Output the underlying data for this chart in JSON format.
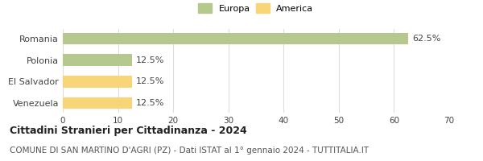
{
  "categories": [
    "Romania",
    "Polonia",
    "El Salvador",
    "Venezuela"
  ],
  "values": [
    62.5,
    12.5,
    12.5,
    12.5
  ],
  "bar_colors": [
    "#b5c98e",
    "#b5c98e",
    "#f9d57a",
    "#f9d57a"
  ],
  "xlim": [
    0,
    70
  ],
  "xticks": [
    0,
    10,
    20,
    30,
    40,
    50,
    60,
    70
  ],
  "legend_items": [
    {
      "label": "Europa",
      "color": "#b5c98e"
    },
    {
      "label": "America",
      "color": "#f9d57a"
    }
  ],
  "title": "Cittadini Stranieri per Cittadinanza - 2024",
  "subtitle": "COMUNE DI SAN MARTINO D'AGRI (PZ) - Dati ISTAT al 1° gennaio 2024 - TUTTITALIA.IT",
  "bar_height": 0.55,
  "background_color": "#ffffff",
  "grid_color": "#dddddd",
  "label_fontsize": 8.0,
  "tick_fontsize": 7.5,
  "title_fontsize": 9.0,
  "subtitle_fontsize": 7.5,
  "value_label_fontsize": 8.0
}
